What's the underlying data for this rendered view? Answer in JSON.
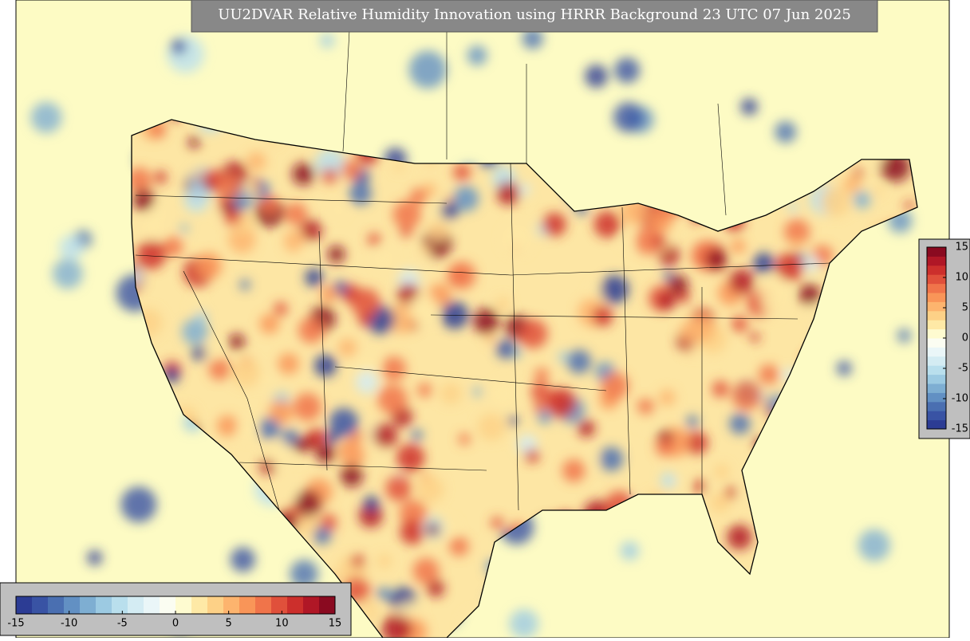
{
  "title": "UU2DVAR Relative Humidity Innovation using HRRR Background 23 UTC 07 Jun 2025",
  "colorbar_horizontal": {
    "range": [
      -15,
      15
    ],
    "ticks": [
      -15,
      -10,
      -5,
      0,
      5,
      10,
      15
    ]
  },
  "colorbar_vertical": {
    "range": [
      -15,
      15
    ],
    "ticks": [
      -15,
      -10,
      -5,
      0,
      5,
      10,
      15
    ]
  },
  "colors": [
    "#2c3c94",
    "#3953a4",
    "#4a6fb1",
    "#6290c3",
    "#7eaed2",
    "#9ccae2",
    "#b9dfed",
    "#d4ecf3",
    "#eaf6f8",
    "#fbfdf2",
    "#fefbd0",
    "#fee9a6",
    "#fdd187",
    "#fdb46e",
    "#f99558",
    "#f0744a",
    "#e0503b",
    "#cc2f2c",
    "#b01726",
    "#8a0a20"
  ]
}
